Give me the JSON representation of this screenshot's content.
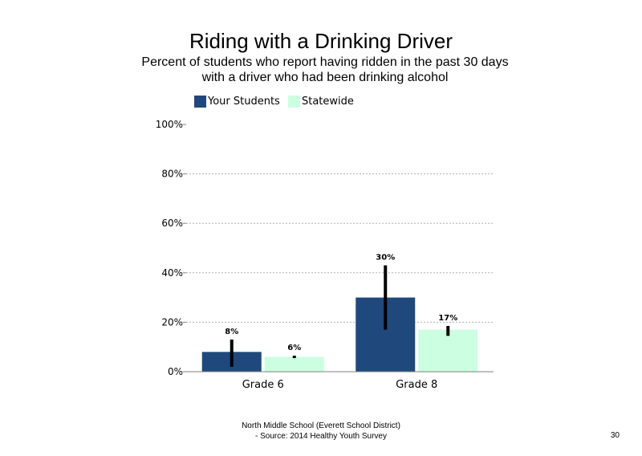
{
  "chart_data": {
    "type": "bar",
    "title": "Riding with a Drinking Driver",
    "subtitle": "Percent of students who report having ridden in the past 30 days with a driver who had been drinking alcohol",
    "categories": [
      "Grade 6",
      "Grade 8"
    ],
    "series": [
      {
        "name": "Your Students",
        "color": "#1f497d",
        "values": [
          8,
          30
        ],
        "labels": [
          "8%",
          "30%"
        ],
        "error_low": [
          2,
          17
        ],
        "error_high": [
          13,
          43
        ]
      },
      {
        "name": "Statewide",
        "color": "#ccffe1",
        "values": [
          6,
          17
        ],
        "labels": [
          "6%",
          "17%"
        ],
        "error_low": [
          5.5,
          14.5
        ],
        "error_high": [
          6.5,
          18.5
        ]
      }
    ],
    "yticks": [
      "0%",
      "20%",
      "40%",
      "60%",
      "80%",
      "100%"
    ],
    "ylim": [
      0,
      100
    ],
    "grid": true,
    "legend": "top-left"
  },
  "footer": {
    "line1": "North Middle School (Everett School District)",
    "line2": "- Source: 2014 Healthy Youth Survey"
  },
  "page_number": "30"
}
